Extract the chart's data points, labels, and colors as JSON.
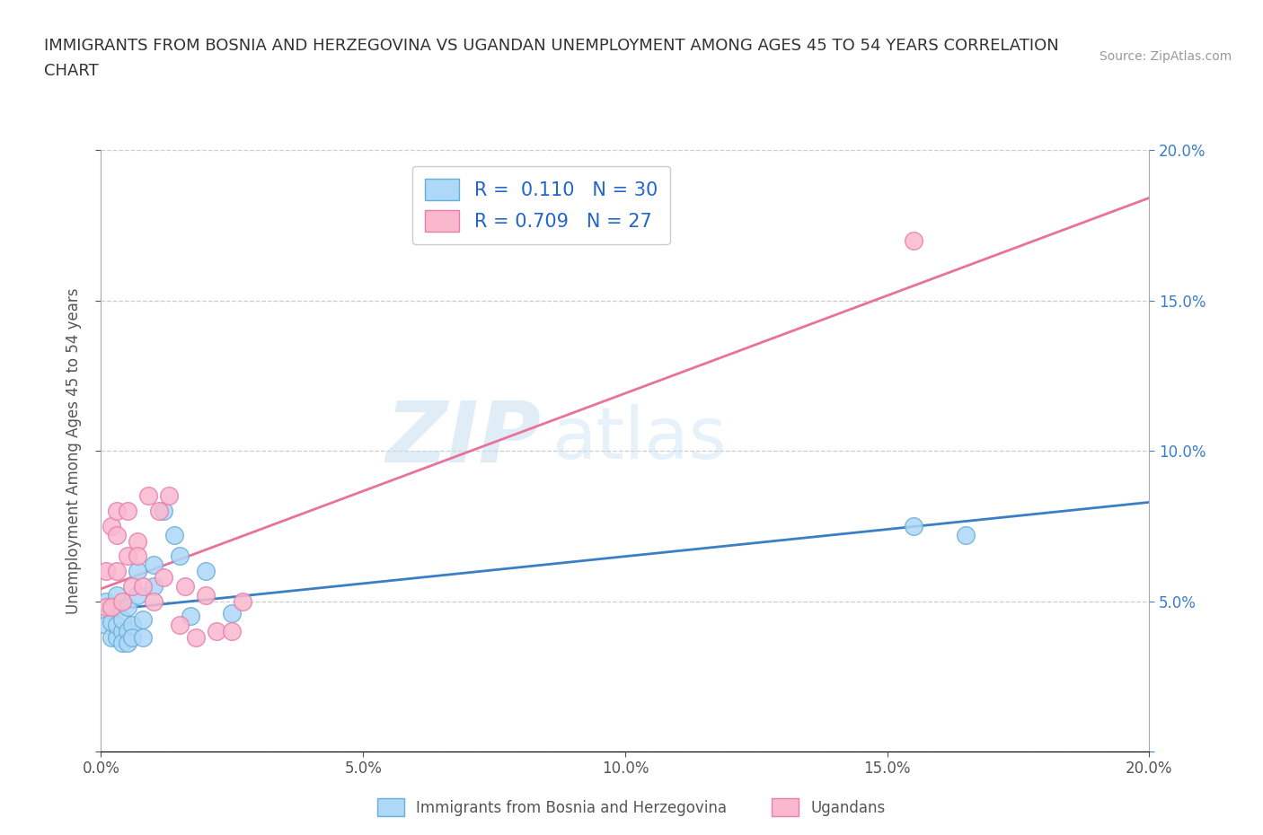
{
  "title_line1": "IMMIGRANTS FROM BOSNIA AND HERZEGOVINA VS UGANDAN UNEMPLOYMENT AMONG AGES 45 TO 54 YEARS CORRELATION",
  "title_line2": "CHART",
  "source": "Source: ZipAtlas.com",
  "ylabel": "Unemployment Among Ages 45 to 54 years",
  "xlim": [
    0.0,
    0.2
  ],
  "ylim": [
    0.0,
    0.2
  ],
  "xticks": [
    0.0,
    0.05,
    0.1,
    0.15,
    0.2
  ],
  "yticks": [
    0.0,
    0.05,
    0.1,
    0.15,
    0.2
  ],
  "xticklabels": [
    "0.0%",
    "5.0%",
    "10.0%",
    "15.0%",
    "20.0%"
  ],
  "right_yticklabels": [
    "",
    "5.0%",
    "10.0%",
    "15.0%",
    "20.0%"
  ],
  "blue_R": 0.11,
  "blue_N": 30,
  "pink_R": 0.709,
  "pink_N": 27,
  "blue_fill_color": "#ADD8F7",
  "pink_fill_color": "#FAB8CE",
  "blue_edge_color": "#6AAED6",
  "pink_edge_color": "#E87DAB",
  "blue_line_color": "#3A7EC6",
  "pink_line_color": "#E8729A",
  "legend_label_blue": "Immigrants from Bosnia and Herzegovina",
  "legend_label_pink": "Ugandans",
  "watermark_zip": "ZIP",
  "watermark_atlas": "atlas",
  "blue_scatter_x": [
    0.001,
    0.001,
    0.002,
    0.002,
    0.002,
    0.003,
    0.003,
    0.003,
    0.004,
    0.004,
    0.004,
    0.005,
    0.005,
    0.005,
    0.006,
    0.006,
    0.007,
    0.007,
    0.008,
    0.008,
    0.01,
    0.01,
    0.012,
    0.014,
    0.015,
    0.017,
    0.02,
    0.025,
    0.155,
    0.165
  ],
  "blue_scatter_y": [
    0.05,
    0.042,
    0.047,
    0.038,
    0.043,
    0.038,
    0.042,
    0.052,
    0.04,
    0.044,
    0.036,
    0.04,
    0.036,
    0.048,
    0.042,
    0.038,
    0.06,
    0.052,
    0.044,
    0.038,
    0.055,
    0.062,
    0.08,
    0.072,
    0.065,
    0.045,
    0.06,
    0.046,
    0.075,
    0.072
  ],
  "pink_scatter_x": [
    0.001,
    0.001,
    0.002,
    0.002,
    0.003,
    0.003,
    0.003,
    0.004,
    0.005,
    0.005,
    0.006,
    0.007,
    0.007,
    0.008,
    0.009,
    0.01,
    0.011,
    0.012,
    0.013,
    0.015,
    0.016,
    0.018,
    0.02,
    0.022,
    0.025,
    0.027,
    0.155
  ],
  "pink_scatter_y": [
    0.06,
    0.048,
    0.075,
    0.048,
    0.08,
    0.072,
    0.06,
    0.05,
    0.065,
    0.08,
    0.055,
    0.07,
    0.065,
    0.055,
    0.085,
    0.05,
    0.08,
    0.058,
    0.085,
    0.042,
    0.055,
    0.038,
    0.052,
    0.04,
    0.04,
    0.05,
    0.17
  ]
}
